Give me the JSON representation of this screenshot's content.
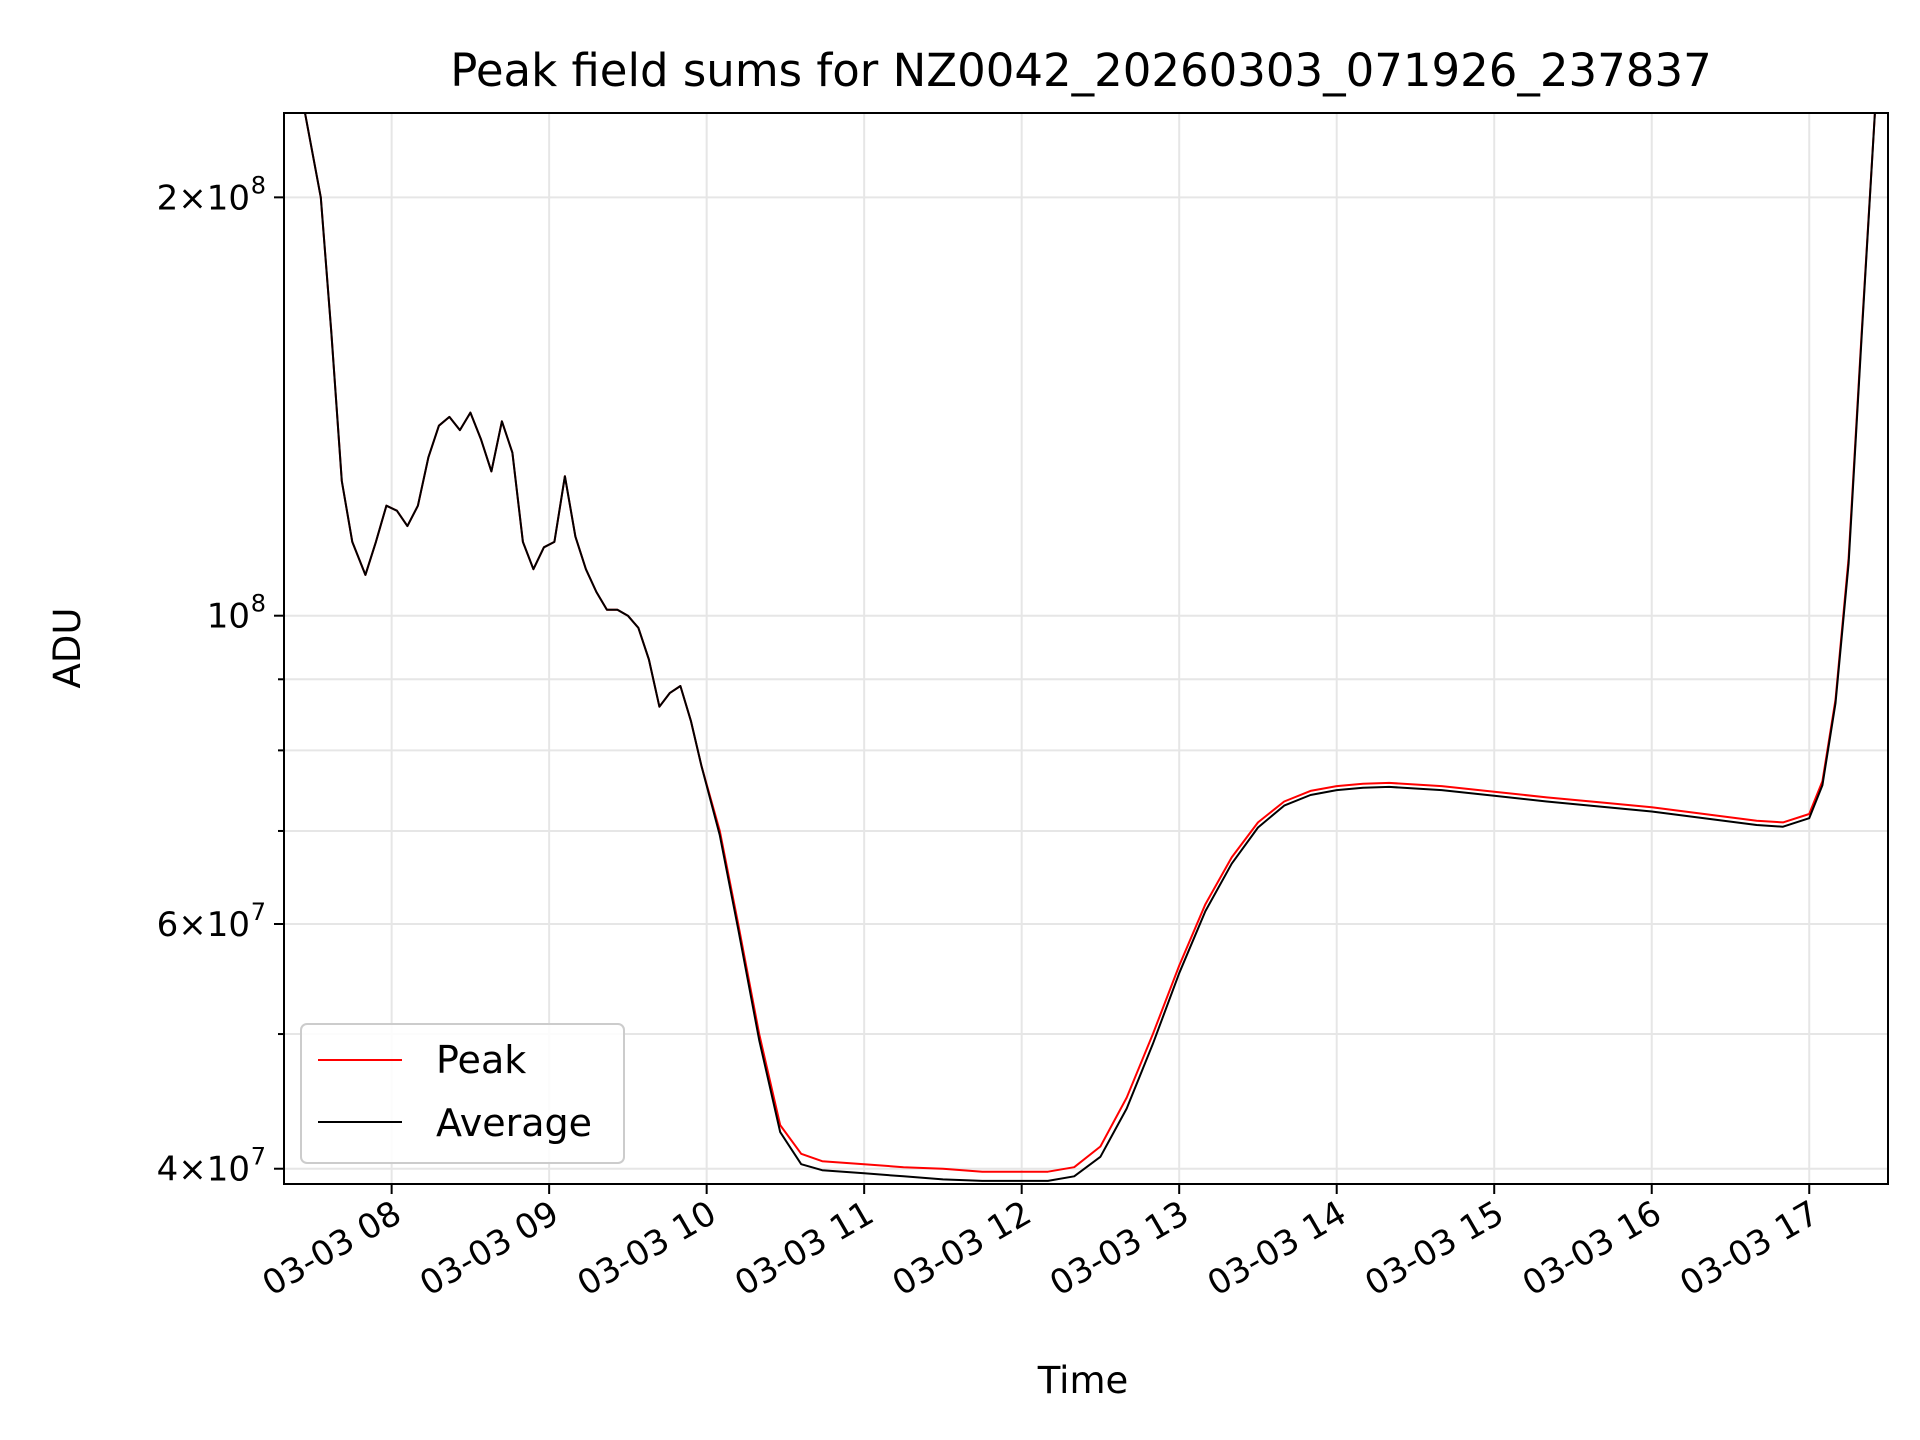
{
  "chart_data": {
    "type": "line",
    "title": "Peak field sums for NZ0042_20260303_071926_237837",
    "xlabel": "Time",
    "ylabel": "ADU",
    "yscale": "log",
    "grid": true,
    "legend_position": "lower-left",
    "x_range": [
      "03-03 07:19",
      "03-03 17:30"
    ],
    "ylim": [
      39000000,
      230000000
    ],
    "x_ticks": [
      {
        "t": "08:00",
        "label": "03-03 08"
      },
      {
        "t": "09:00",
        "label": "03-03 09"
      },
      {
        "t": "10:00",
        "label": "03-03 10"
      },
      {
        "t": "11:00",
        "label": "03-03 11"
      },
      {
        "t": "12:00",
        "label": "03-03 12"
      },
      {
        "t": "13:00",
        "label": "03-03 13"
      },
      {
        "t": "14:00",
        "label": "03-03 14"
      },
      {
        "t": "15:00",
        "label": "03-03 15"
      },
      {
        "t": "16:00",
        "label": "03-03 16"
      },
      {
        "t": "17:00",
        "label": "03-03 17"
      }
    ],
    "y_ticks": [
      {
        "value": 40000000,
        "base": "4",
        "exp": "7"
      },
      {
        "value": 60000000,
        "base": "6",
        "exp": "7"
      },
      {
        "value": 100000000,
        "base": "",
        "exp": "8"
      },
      {
        "value": 200000000,
        "base": "2",
        "exp": "8"
      }
    ],
    "y_minor_ticks": [
      50000000,
      70000000,
      80000000,
      90000000
    ],
    "series": [
      {
        "name": "Peak",
        "color": "#ff0000",
        "x": [
          "07:19",
          "07:27",
          "07:33",
          "07:37",
          "07:41",
          "07:45",
          "07:50",
          "07:54",
          "07:58",
          "08:02",
          "08:06",
          "08:10",
          "08:14",
          "08:18",
          "08:22",
          "08:26",
          "08:30",
          "08:34",
          "08:38",
          "08:42",
          "08:46",
          "08:50",
          "08:54",
          "08:58",
          "09:02",
          "09:06",
          "09:10",
          "09:14",
          "09:18",
          "09:22",
          "09:26",
          "09:30",
          "09:34",
          "09:38",
          "09:42",
          "09:46",
          "09:50",
          "09:54",
          "09:58",
          "10:05",
          "10:12",
          "10:20",
          "10:28",
          "10:36",
          "10:44",
          "10:52",
          "11:00",
          "11:15",
          "11:30",
          "11:45",
          "12:00",
          "12:10",
          "12:20",
          "12:30",
          "12:40",
          "12:50",
          "13:00",
          "13:10",
          "13:20",
          "13:30",
          "13:40",
          "13:50",
          "14:00",
          "14:10",
          "14:20",
          "14:40",
          "15:00",
          "15:20",
          "15:40",
          "16:00",
          "16:20",
          "16:40",
          "16:50",
          "17:00",
          "17:05",
          "17:10",
          "17:15",
          "17:20",
          "17:25",
          "17:30"
        ],
        "values": [
          230000000,
          230000000,
          200000000,
          160000000,
          125000000,
          113000000,
          107000000,
          113000000,
          120000000,
          119000000,
          116000000,
          120000000,
          130000000,
          137000000,
          139000000,
          136000000,
          140000000,
          134000000,
          127000000,
          138000000,
          131000000,
          113000000,
          108000000,
          112000000,
          113000000,
          126000000,
          114000000,
          108000000,
          104000000,
          101000000,
          101000000,
          100000000,
          98000000,
          93000000,
          86000000,
          88000000,
          89000000,
          84000000,
          78000000,
          70000000,
          60000000,
          50000000,
          43000000,
          41000000,
          40500000,
          40400000,
          40300000,
          40100000,
          40000000,
          39800000,
          39800000,
          39800000,
          40100000,
          41500000,
          45000000,
          50000000,
          56000000,
          62000000,
          67000000,
          71000000,
          73500000,
          74800000,
          75400000,
          75700000,
          75800000,
          75400000,
          74700000,
          74000000,
          73400000,
          72800000,
          72000000,
          71200000,
          71000000,
          72000000,
          76000000,
          87000000,
          110000000,
          160000000,
          230000000,
          230000000
        ]
      },
      {
        "name": "Average",
        "color": "#000000",
        "x": [
          "07:19",
          "07:27",
          "07:33",
          "07:37",
          "07:41",
          "07:45",
          "07:50",
          "07:54",
          "07:58",
          "08:02",
          "08:06",
          "08:10",
          "08:14",
          "08:18",
          "08:22",
          "08:26",
          "08:30",
          "08:34",
          "08:38",
          "08:42",
          "08:46",
          "08:50",
          "08:54",
          "08:58",
          "09:02",
          "09:06",
          "09:10",
          "09:14",
          "09:18",
          "09:22",
          "09:26",
          "09:30",
          "09:34",
          "09:38",
          "09:42",
          "09:46",
          "09:50",
          "09:54",
          "09:58",
          "10:05",
          "10:12",
          "10:20",
          "10:28",
          "10:36",
          "10:44",
          "10:52",
          "11:00",
          "11:15",
          "11:30",
          "11:45",
          "12:00",
          "12:10",
          "12:20",
          "12:30",
          "12:40",
          "12:50",
          "13:00",
          "13:10",
          "13:20",
          "13:30",
          "13:40",
          "13:50",
          "14:00",
          "14:10",
          "14:20",
          "14:40",
          "15:00",
          "15:20",
          "15:40",
          "16:00",
          "16:20",
          "16:40",
          "16:50",
          "17:00",
          "17:05",
          "17:10",
          "17:15",
          "17:20",
          "17:25",
          "17:30"
        ],
        "values": [
          230000000,
          230000000,
          200000000,
          160000000,
          125000000,
          113000000,
          107000000,
          113000000,
          120000000,
          119000000,
          116000000,
          120000000,
          130000000,
          137000000,
          139000000,
          136000000,
          140000000,
          134000000,
          127000000,
          138000000,
          131000000,
          113000000,
          108000000,
          112000000,
          113000000,
          126000000,
          114000000,
          108000000,
          104000000,
          101000000,
          101000000,
          100000000,
          98000000,
          93000000,
          86000000,
          88000000,
          89000000,
          84000000,
          78000000,
          69500000,
          59500000,
          49500000,
          42500000,
          40300000,
          39900000,
          39800000,
          39700000,
          39500000,
          39300000,
          39200000,
          39200000,
          39200000,
          39500000,
          40800000,
          44200000,
          49200000,
          55300000,
          61300000,
          66300000,
          70400000,
          73000000,
          74300000,
          74900000,
          75200000,
          75300000,
          74900000,
          74200000,
          73500000,
          72900000,
          72300000,
          71500000,
          70700000,
          70500000,
          71500000,
          75500000,
          86500000,
          109000000,
          159000000,
          230000000,
          230000000
        ]
      }
    ]
  }
}
